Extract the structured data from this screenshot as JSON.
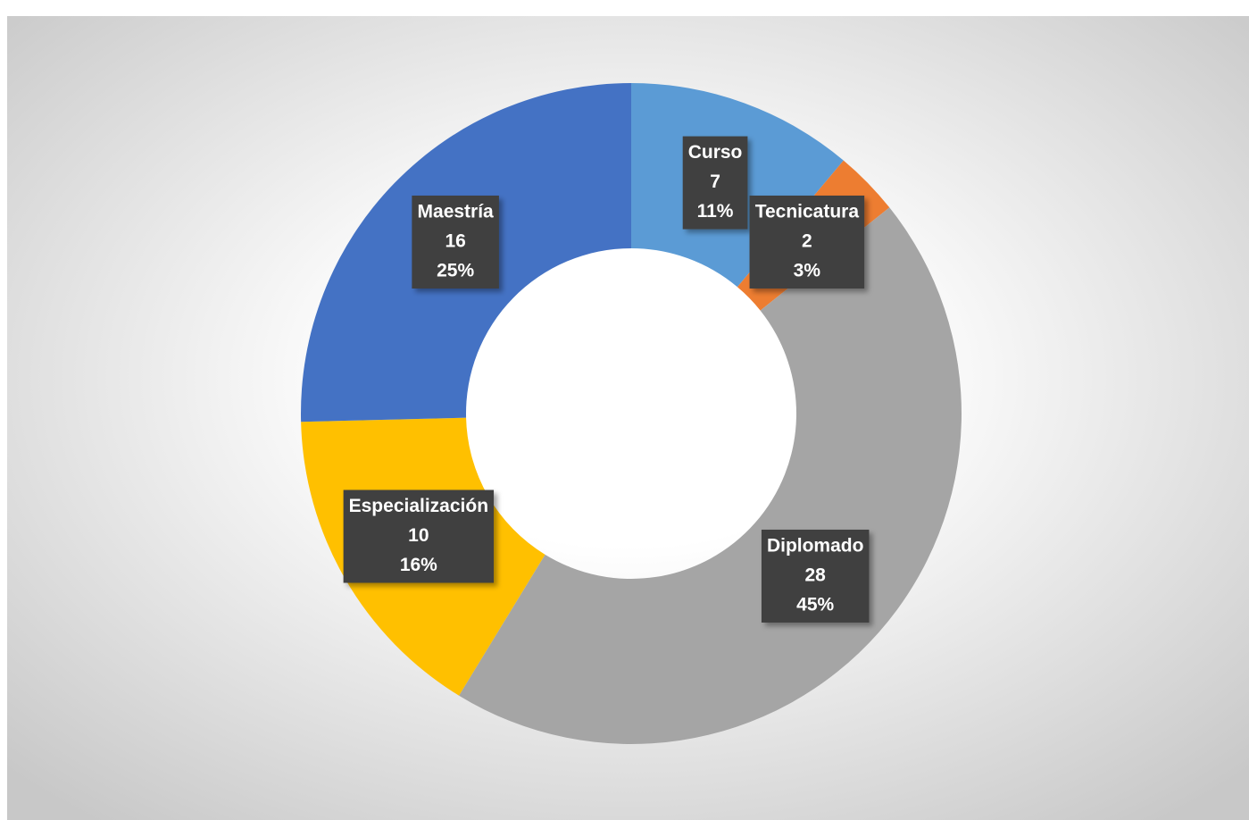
{
  "chart_data": {
    "type": "donut",
    "categories": [
      "Curso",
      "Tecnicatura",
      "Diplomado",
      "Especialización",
      "Maestría"
    ],
    "values": [
      7,
      2,
      28,
      10,
      16
    ],
    "percent_labels": [
      "11%",
      "3%",
      "45%",
      "16%",
      "25%"
    ],
    "colors": [
      "#5b9bd5",
      "#ed7d31",
      "#a5a5a5",
      "#ffc000",
      "#4472c4"
    ]
  }
}
